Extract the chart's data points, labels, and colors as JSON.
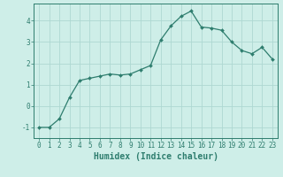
{
  "x": [
    0,
    1,
    2,
    3,
    4,
    5,
    6,
    7,
    8,
    9,
    10,
    11,
    12,
    13,
    14,
    15,
    16,
    17,
    18,
    19,
    20,
    21,
    22,
    23
  ],
  "y": [
    -1.0,
    -1.0,
    -0.6,
    0.4,
    1.2,
    1.3,
    1.4,
    1.5,
    1.45,
    1.5,
    1.7,
    1.9,
    3.1,
    3.75,
    4.2,
    4.45,
    3.7,
    3.65,
    3.55,
    3.0,
    2.6,
    2.45,
    2.75,
    2.2
  ],
  "line_color": "#2e7d6e",
  "marker": "D",
  "marker_size": 2.0,
  "line_width": 0.9,
  "background_color": "#ceeee8",
  "grid_color": "#aed8d2",
  "xlabel": "Humidex (Indice chaleur)",
  "ylabel": "",
  "ylim": [
    -1.5,
    4.8
  ],
  "xlim": [
    -0.5,
    23.5
  ],
  "yticks": [
    -1,
    0,
    1,
    2,
    3,
    4
  ],
  "xticks": [
    0,
    1,
    2,
    3,
    4,
    5,
    6,
    7,
    8,
    9,
    10,
    11,
    12,
    13,
    14,
    15,
    16,
    17,
    18,
    19,
    20,
    21,
    22,
    23
  ],
  "tick_color": "#2e7d6e",
  "tick_fontsize": 5.5,
  "xlabel_fontsize": 7.0,
  "xlabel_fontweight": "bold"
}
